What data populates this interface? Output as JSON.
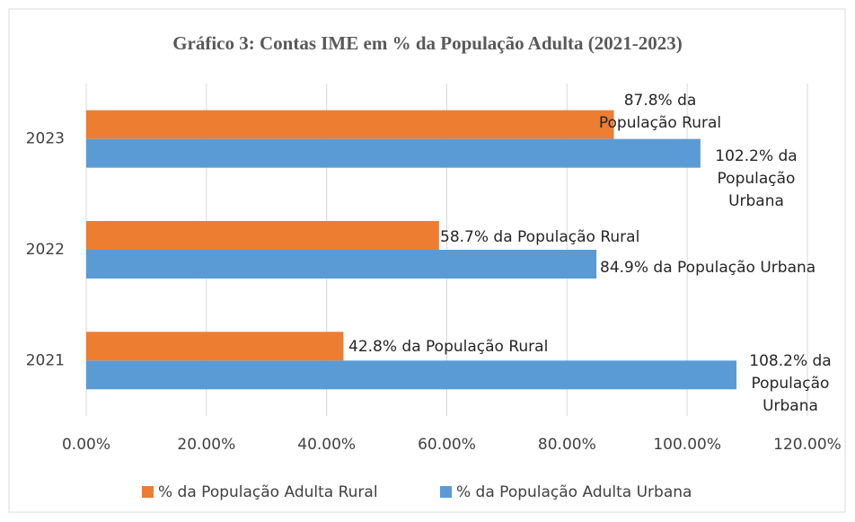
{
  "chart_data": {
    "type": "bar",
    "orientation": "horizontal",
    "title": "Gráfico 3: Contas IME em % da População Adulta (2021-2023)",
    "categories": [
      "2021",
      "2022",
      "2023"
    ],
    "series": [
      {
        "name": "% da População Adulta Rural",
        "color": "#ED7D31",
        "values": [
          42.8,
          58.7,
          87.8
        ],
        "value_labels": [
          "42.8% da População Rural",
          "58.7% da População Rural",
          "87.8% da População Rural"
        ]
      },
      {
        "name": "% da População Adulta Urbana",
        "color": "#5B9BD5",
        "values": [
          108.2,
          84.9,
          102.2
        ],
        "value_labels": [
          "108.2% da População Urbana",
          "84.9% da População Urbana",
          "102.2% da População Urbana"
        ]
      }
    ],
    "xlim": [
      0,
      120
    ],
    "xticks": [
      {
        "value": 0,
        "label": "0.00%"
      },
      {
        "value": 20,
        "label": "20.00%"
      },
      {
        "value": 40,
        "label": "40.00%"
      },
      {
        "value": 60,
        "label": "60.00%"
      },
      {
        "value": 80,
        "label": "80.00%"
      },
      {
        "value": 100,
        "label": "100.00%"
      },
      {
        "value": 120,
        "label": "120.00%"
      }
    ],
    "grid": true,
    "legend": "bottom"
  }
}
